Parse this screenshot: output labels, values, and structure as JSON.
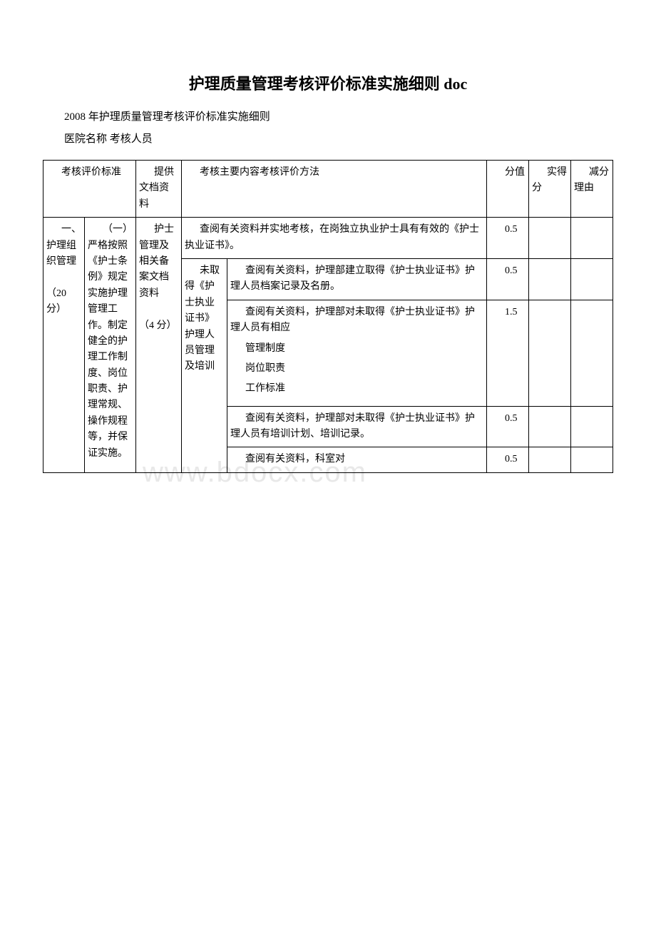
{
  "doc": {
    "title": "护理质量管理考核评价标准实施细则 doc",
    "subtitle": "2008 年护理质量管理考核评价标准实施细则",
    "info_line": "医院名称  考核人员"
  },
  "watermark": "www.bdocx.com",
  "headers": {
    "h1": "考核评价标准",
    "h2": "提供文档资料",
    "h3": "考核主要内容考核评价方法",
    "h4": "分值",
    "h5": "实得分",
    "h6": "减分理由"
  },
  "col1": {
    "section": "一、护理组织管理",
    "points": "（20 分）"
  },
  "col2": {
    "criterion": "（一）严格按照《护士条例》规定实施护理管理工作。制定健全的护理工作制度、岗位职责、护理常规、操作规程等，并保证实施。"
  },
  "col3": {
    "docs": "护士管理及相关备案文档资料",
    "doc_points": "（4 分）"
  },
  "rows": [
    {
      "sub": "",
      "content": "查阅有关资料并实地考核，在岗独立执业护士具有有效的《护士执业证书》。",
      "score": "0.5"
    },
    {
      "sub": "未取得《护士执业证书》护理人员管理及培训",
      "content": "查阅有关资料，护理部建立取得《护士执业证书》护理人员档案记录及名册。",
      "score": "0.5"
    },
    {
      "sub": "",
      "content_lines": [
        "查阅有关资料，护理部对未取得《护士执业证书》护理人员有相应",
        "管理制度",
        "岗位职责",
        "工作标准"
      ],
      "score": "1.5"
    },
    {
      "sub": "",
      "content": "查阅有关资料，护理部对未取得《护士执业证书》护理人员有培训计划、培训记录。",
      "score": "0.5"
    },
    {
      "sub": "",
      "content": "查阅有关资料，科室对",
      "score": "0.5"
    }
  ]
}
